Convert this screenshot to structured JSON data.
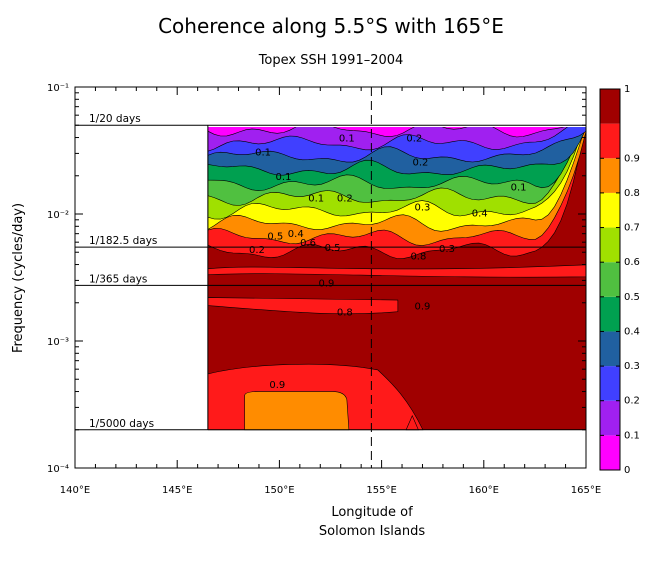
{
  "chart_data": {
    "type": "heatmap",
    "title": "Coherence along 5.5°S with 165°E",
    "subtitle": "Topex SSH 1991–2004",
    "xlabel": "Longitude of\nSolomon Islands",
    "ylabel": "Frequency (cycles/day)",
    "xlim": [
      140,
      165
    ],
    "xticks": [
      140,
      145,
      150,
      155,
      160,
      165
    ],
    "xtick_labels": [
      "140°E",
      "145°E",
      "150°E",
      "155°E",
      "160°E",
      "165°E"
    ],
    "ylim": [
      0.0001,
      0.1
    ],
    "yscale": "log",
    "yticks": [
      0.0001,
      0.001,
      0.01,
      0.1
    ],
    "ytick_labels": [
      "10⁻⁴",
      "10⁻³",
      "10⁻²",
      "10⁻¹"
    ],
    "data_x_range": [
      146.5,
      165
    ],
    "data_y_range": [
      0.0002,
      0.05
    ],
    "reference_lines": [
      {
        "label": "1/20 days",
        "frequency": 0.05
      },
      {
        "label": "1/182.5 days",
        "frequency": 0.00548
      },
      {
        "label": "1/365 days",
        "frequency": 0.00274
      },
      {
        "label": "1/5000 days",
        "frequency": 0.0002
      }
    ],
    "vertical_line": {
      "longitude": 154.5,
      "style": "dashed"
    },
    "colorbar": {
      "levels": [
        0,
        0.1,
        0.2,
        0.3,
        0.4,
        0.5,
        0.6,
        0.7,
        0.8,
        0.9,
        1
      ],
      "labels": [
        "0",
        "0.1",
        "0.2",
        "0.3",
        "0.4",
        "0.5",
        "0.6",
        "0.7",
        "0.8",
        "0.9",
        "1"
      ],
      "colors": [
        "#ff00ff",
        "#a020f0",
        "#4040ff",
        "#2060a0",
        "#00a050",
        "#50c040",
        "#a0e000",
        "#ffff00",
        "#ff8c00",
        "#ff1a1a",
        "#a00000"
      ]
    },
    "contour_labels": [
      {
        "text": "0.1",
        "lon": 153.3,
        "freq": 0.04
      },
      {
        "text": "0.2",
        "lon": 156.6,
        "freq": 0.04
      },
      {
        "text": "0.1",
        "lon": 149.2,
        "freq": 0.031
      },
      {
        "text": "0.2",
        "lon": 156.9,
        "freq": 0.026
      },
      {
        "text": "0.1",
        "lon": 150.2,
        "freq": 0.02
      },
      {
        "text": "0.1",
        "lon": 151.8,
        "freq": 0.0135
      },
      {
        "text": "0.2",
        "lon": 153.2,
        "freq": 0.0135
      },
      {
        "text": "0.3",
        "lon": 157.0,
        "freq": 0.0115
      },
      {
        "text": "0.1",
        "lon": 161.7,
        "freq": 0.0165
      },
      {
        "text": "0.4",
        "lon": 159.8,
        "freq": 0.0103
      },
      {
        "text": "0.5",
        "lon": 149.8,
        "freq": 0.0068
      },
      {
        "text": "0.4",
        "lon": 150.8,
        "freq": 0.0071
      },
      {
        "text": "0.6",
        "lon": 151.4,
        "freq": 0.006
      },
      {
        "text": "0.2",
        "lon": 148.9,
        "freq": 0.0053
      },
      {
        "text": "0.5",
        "lon": 152.6,
        "freq": 0.0055
      },
      {
        "text": "0.3",
        "lon": 158.2,
        "freq": 0.0054
      },
      {
        "text": "0.8",
        "lon": 156.8,
        "freq": 0.0047
      },
      {
        "text": "0.9",
        "lon": 152.3,
        "freq": 0.0029
      },
      {
        "text": "0.8",
        "lon": 153.2,
        "freq": 0.0017
      },
      {
        "text": "0.9",
        "lon": 157.0,
        "freq": 0.0019
      },
      {
        "text": "0.9",
        "lon": 149.9,
        "freq": 0.00046
      }
    ]
  }
}
